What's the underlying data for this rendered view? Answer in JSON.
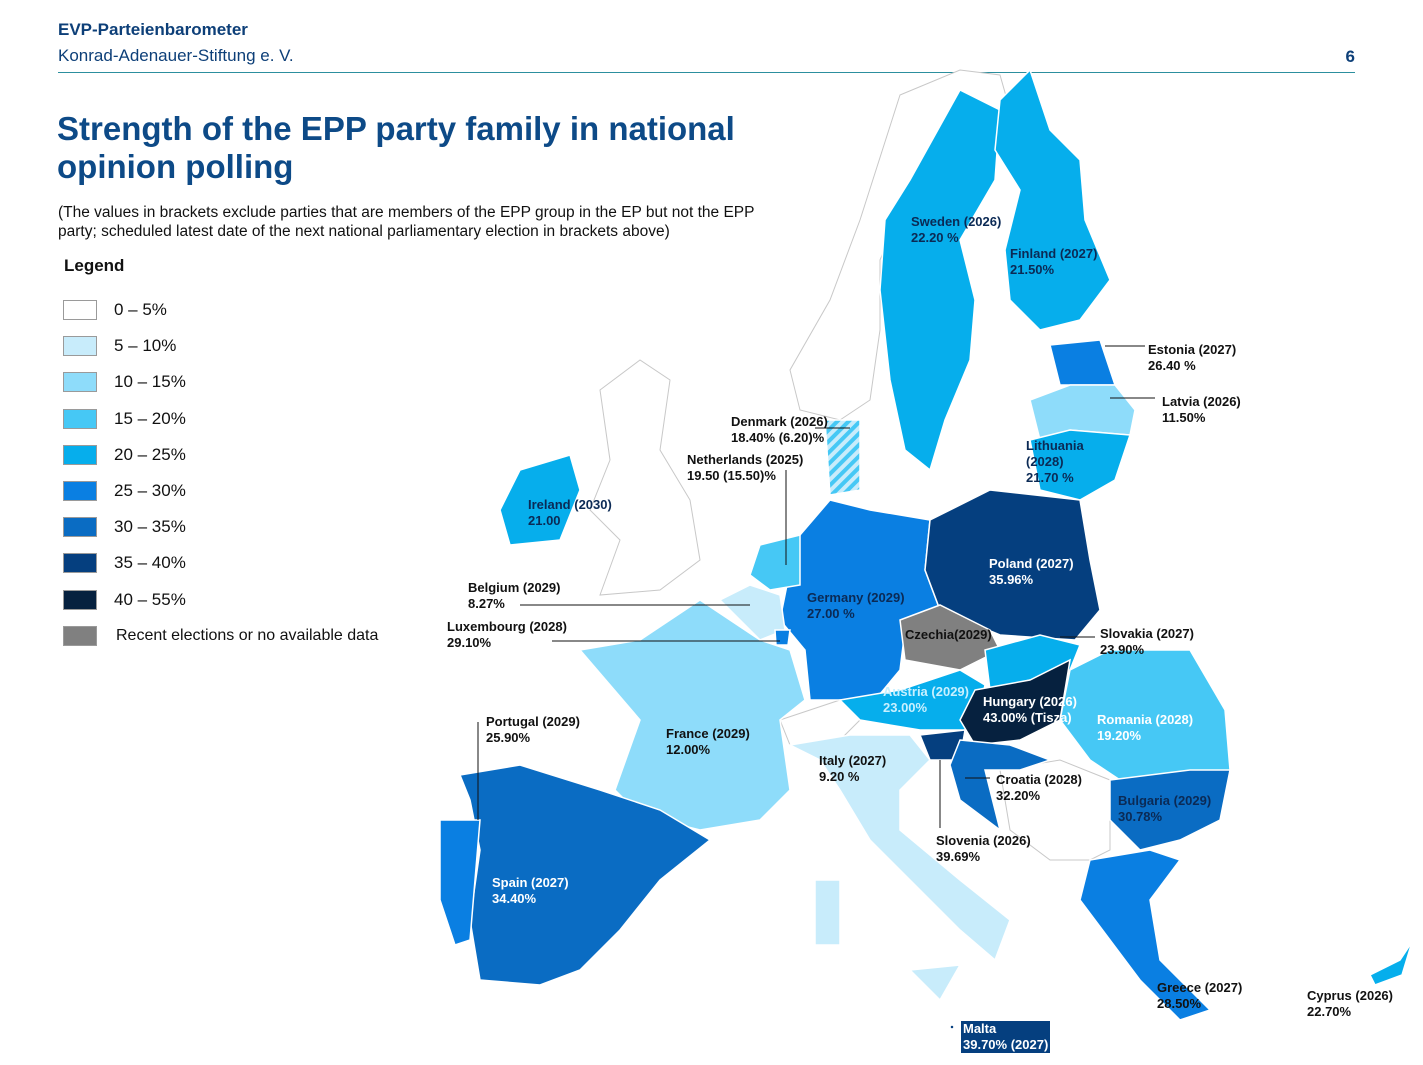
{
  "header": {
    "series": "EVP-Parteienbarometer",
    "publisher": "Konrad-Adenauer-Stiftung e. V.",
    "page": "6"
  },
  "title": "Strength of the EPP party family in national opinion polling",
  "subtitle": "(The values in brackets exclude parties that are members of the EPP group in the EP but not the EPP party; scheduled latest date of the next national parliamentary election in brackets above)",
  "legend": {
    "title": "Legend",
    "items": [
      {
        "label": "0 – 5%",
        "color": "#ffffff"
      },
      {
        "label": "5 – 10%",
        "color": "#c8ecfb"
      },
      {
        "label": "10 – 15%",
        "color": "#8edcfa"
      },
      {
        "label": "15 – 20%",
        "color": "#46c8f5"
      },
      {
        "label": "20 – 25%",
        "color": "#06aeec"
      },
      {
        "label": "25 – 30%",
        "color": "#0a7fe2"
      },
      {
        "label": "30 – 35%",
        "color": "#0a6cc3"
      },
      {
        "label": "35 – 40%",
        "color": "#053f7f"
      },
      {
        "label": "40 – 55%",
        "color": "#06213f"
      },
      {
        "label": "Recent elections or no available data",
        "color": "#808080"
      }
    ]
  },
  "map": {
    "countries": [
      {
        "line1": "Sweden (2026)",
        "line2": "22.20 %",
        "value": 22.2
      },
      {
        "line1": "Finland (2027)",
        "line2": "21.50%",
        "value": 21.5
      },
      {
        "line1": "Estonia (2027)",
        "line2": "26.40 %",
        "value": 26.4
      },
      {
        "line1": "Latvia (2026)",
        "line2": "11.50%",
        "value": 11.5
      },
      {
        "line1": "Lithuania (2028)",
        "line2": "21.70 %",
        "value": 21.7
      },
      {
        "line1": "Denmark (2026)",
        "line2": "18.40% (6.20)%",
        "value": 18.4
      },
      {
        "line1": "Netherlands (2025)",
        "line2": "19.50 (15.50)%",
        "value": 19.5
      },
      {
        "line1": "Ireland (2030)",
        "line2": "21.00",
        "value": 21.0
      },
      {
        "line1": "Belgium (2029)",
        "line2": "8.27%",
        "value": 8.27
      },
      {
        "line1": "Luxembourg (2028)",
        "line2": "29.10%",
        "value": 29.1
      },
      {
        "line1": "Germany (2029)",
        "line2": "27.00 %",
        "value": 27.0
      },
      {
        "line1": "Poland (2027)",
        "line2": "35.96%",
        "value": 35.96
      },
      {
        "line1": "Czechia(2029)",
        "line2": "",
        "value": null
      },
      {
        "line1": "Slovakia (2027)",
        "line2": "23.90%",
        "value": 23.9
      },
      {
        "line1": "Austria (2029)",
        "line2": "23.00%",
        "value": 23.0
      },
      {
        "line1": "Hungary (2026)",
        "line2": "43.00% (Tisza)",
        "value": 43.0
      },
      {
        "line1": "Romania (2028)",
        "line2": "19.20%",
        "value": 19.2
      },
      {
        "line1": "Portugal (2029)",
        "line2": "25.90%",
        "value": 25.9
      },
      {
        "line1": "France (2029)",
        "line2": "12.00%",
        "value": 12.0
      },
      {
        "line1": "Italy (2027)",
        "line2": "9.20 %",
        "value": 9.2
      },
      {
        "line1": "Croatia (2028)",
        "line2": "32.20%",
        "value": 32.2
      },
      {
        "line1": "Bulgaria (2029)",
        "line2": "30.78%",
        "value": 30.78
      },
      {
        "line1": "Slovenia (2026)",
        "line2": "39.69%",
        "value": 39.69
      },
      {
        "line1": "Spain (2027)",
        "line2": "34.40%",
        "value": 34.4
      },
      {
        "line1": "Greece (2027)",
        "line2": "28.50%",
        "value": 28.5
      },
      {
        "line1": "Cyprus (2026)",
        "line2": "22.70%",
        "value": 22.7
      },
      {
        "line1": "Malta",
        "line2": "39.70% (2027)",
        "value": 39.7
      }
    ]
  }
}
